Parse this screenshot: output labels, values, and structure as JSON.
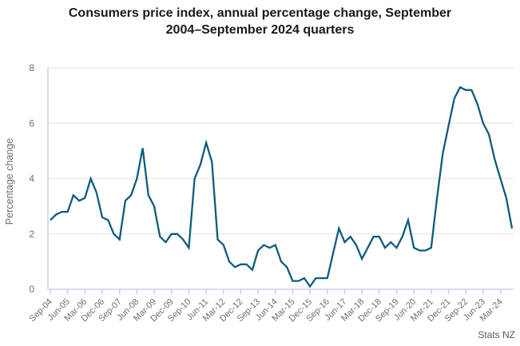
{
  "title_lines": [
    "Consumers price index, annual percentage change, September",
    "2004–September 2024 quarters"
  ],
  "source": "Stats NZ",
  "colors": {
    "line": "#0e5c7d",
    "grid": "#e8e8e8",
    "axis": "#ccd4ec",
    "tick_label": "#6e6e6e",
    "axis_title": "#6e6e6e",
    "title": "#1a1a1a",
    "background": "#ffffff"
  },
  "chart_data": {
    "type": "line",
    "title": "Consumers price index, annual percentage change, September 2004–September 2024 quarters",
    "xlabel": "",
    "ylabel": "Percentage change",
    "ylim": [
      0,
      8
    ],
    "yticks": [
      0,
      2,
      4,
      6,
      8
    ],
    "x_tick_every": 3,
    "grid": true,
    "legend": "none",
    "x": [
      "Sep-04",
      "Dec-04",
      "Mar-05",
      "Jun-05",
      "Sep-05",
      "Dec-05",
      "Mar-06",
      "Jun-06",
      "Sep-06",
      "Dec-06",
      "Mar-07",
      "Jun-07",
      "Sep-07",
      "Dec-07",
      "Mar-08",
      "Jun-08",
      "Sep-08",
      "Dec-08",
      "Mar-09",
      "Jun-09",
      "Sep-09",
      "Dec-09",
      "Mar-10",
      "Jun-10",
      "Sep-10",
      "Dec-10",
      "Mar-11",
      "Jun-11",
      "Sep-11",
      "Dec-11",
      "Mar-12",
      "Jun-12",
      "Sep-12",
      "Dec-12",
      "Mar-13",
      "Jun-13",
      "Sep-13",
      "Dec-13",
      "Mar-14",
      "Jun-14",
      "Sep-14",
      "Dec-14",
      "Mar-15",
      "Jun-15",
      "Sep-15",
      "Dec-15",
      "Mar-16",
      "Jun-16",
      "Sep-16",
      "Dec-16",
      "Mar-17",
      "Jun-17",
      "Sep-17",
      "Dec-17",
      "Mar-18",
      "Jun-18",
      "Sep-18",
      "Dec-18",
      "Mar-19",
      "Jun-19",
      "Sep-19",
      "Dec-19",
      "Mar-20",
      "Jun-20",
      "Sep-20",
      "Dec-20",
      "Mar-21",
      "Jun-21",
      "Sep-21",
      "Dec-21",
      "Mar-22",
      "Jun-22",
      "Sep-22",
      "Dec-22",
      "Mar-23",
      "Jun-23",
      "Sep-23",
      "Dec-23",
      "Mar-24",
      "Jun-24",
      "Sep-24"
    ],
    "values": [
      2.5,
      2.7,
      2.8,
      2.8,
      3.4,
      3.2,
      3.3,
      4.0,
      3.5,
      2.6,
      2.5,
      2.0,
      1.8,
      3.2,
      3.4,
      4.0,
      5.1,
      3.4,
      3.0,
      1.9,
      1.7,
      2.0,
      2.0,
      1.8,
      1.5,
      4.0,
      4.5,
      5.3,
      4.6,
      1.8,
      1.6,
      1.0,
      0.8,
      0.9,
      0.9,
      0.7,
      1.4,
      1.6,
      1.5,
      1.6,
      1.0,
      0.8,
      0.3,
      0.3,
      0.4,
      0.1,
      0.4,
      0.4,
      0.4,
      1.3,
      2.2,
      1.7,
      1.9,
      1.6,
      1.1,
      1.5,
      1.9,
      1.9,
      1.5,
      1.7,
      1.5,
      1.9,
      2.5,
      1.5,
      1.4,
      1.4,
      1.5,
      3.3,
      4.9,
      5.9,
      6.9,
      7.3,
      7.2,
      7.2,
      6.7,
      6.0,
      5.6,
      4.7,
      4.0,
      3.3,
      2.2
    ]
  }
}
